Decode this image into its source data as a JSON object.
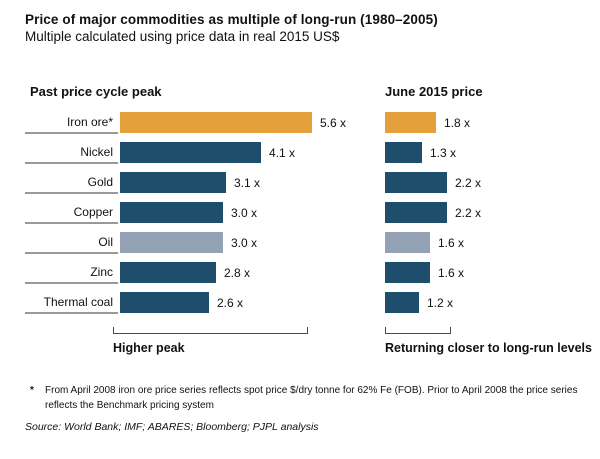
{
  "header": {
    "title": "Price of major commodities as multiple of long-run (1980–2005)",
    "subtitle": "Multiple calculated using price data in real 2015 US$"
  },
  "panels": {
    "left": {
      "heading": "Past price cycle peak",
      "caption": "Higher peak"
    },
    "right": {
      "heading": "June 2015 price",
      "caption": "Returning closer to long-run levels"
    }
  },
  "chart_data": {
    "type": "bar",
    "orientation": "horizontal",
    "categories": [
      "Iron ore*",
      "Nickel",
      "Gold",
      "Copper",
      "Oil",
      "Zinc",
      "Thermal coal"
    ],
    "series": [
      {
        "name": "Past price cycle peak",
        "values": [
          5.6,
          4.1,
          3.1,
          3.0,
          3.0,
          2.8,
          2.6
        ],
        "labels": [
          "5.6 x",
          "4.1 x",
          "3.1 x",
          "3.0 x",
          "3.0 x",
          "2.8 x",
          "2.6 x"
        ]
      },
      {
        "name": "June 2015 price",
        "values": [
          1.8,
          1.3,
          2.2,
          2.2,
          1.6,
          1.6,
          1.2
        ],
        "labels": [
          "1.8 x",
          "1.3 x",
          "2.2 x",
          "2.2 x",
          "1.6 x",
          "1.6 x",
          "1.2 x"
        ]
      }
    ],
    "unit_suffix": "x",
    "xlim": [
      0,
      6
    ],
    "colors": {
      "highlight": "#E4A13B",
      "primary": "#1F4E6C",
      "secondary": "#92A1B3"
    },
    "row_colors": [
      "highlight",
      "primary",
      "primary",
      "primary",
      "secondary",
      "primary",
      "primary"
    ]
  },
  "footnote": {
    "marker": "*",
    "text": "From April 2008 iron ore price series reflects spot price $/dry tonne for 62% Fe (FOB). Prior to April 2008 the price series reflects the Benchmark pricing system"
  },
  "source": "Source: World Bank; IMF; ABARES; Bloomberg; PJPL analysis"
}
